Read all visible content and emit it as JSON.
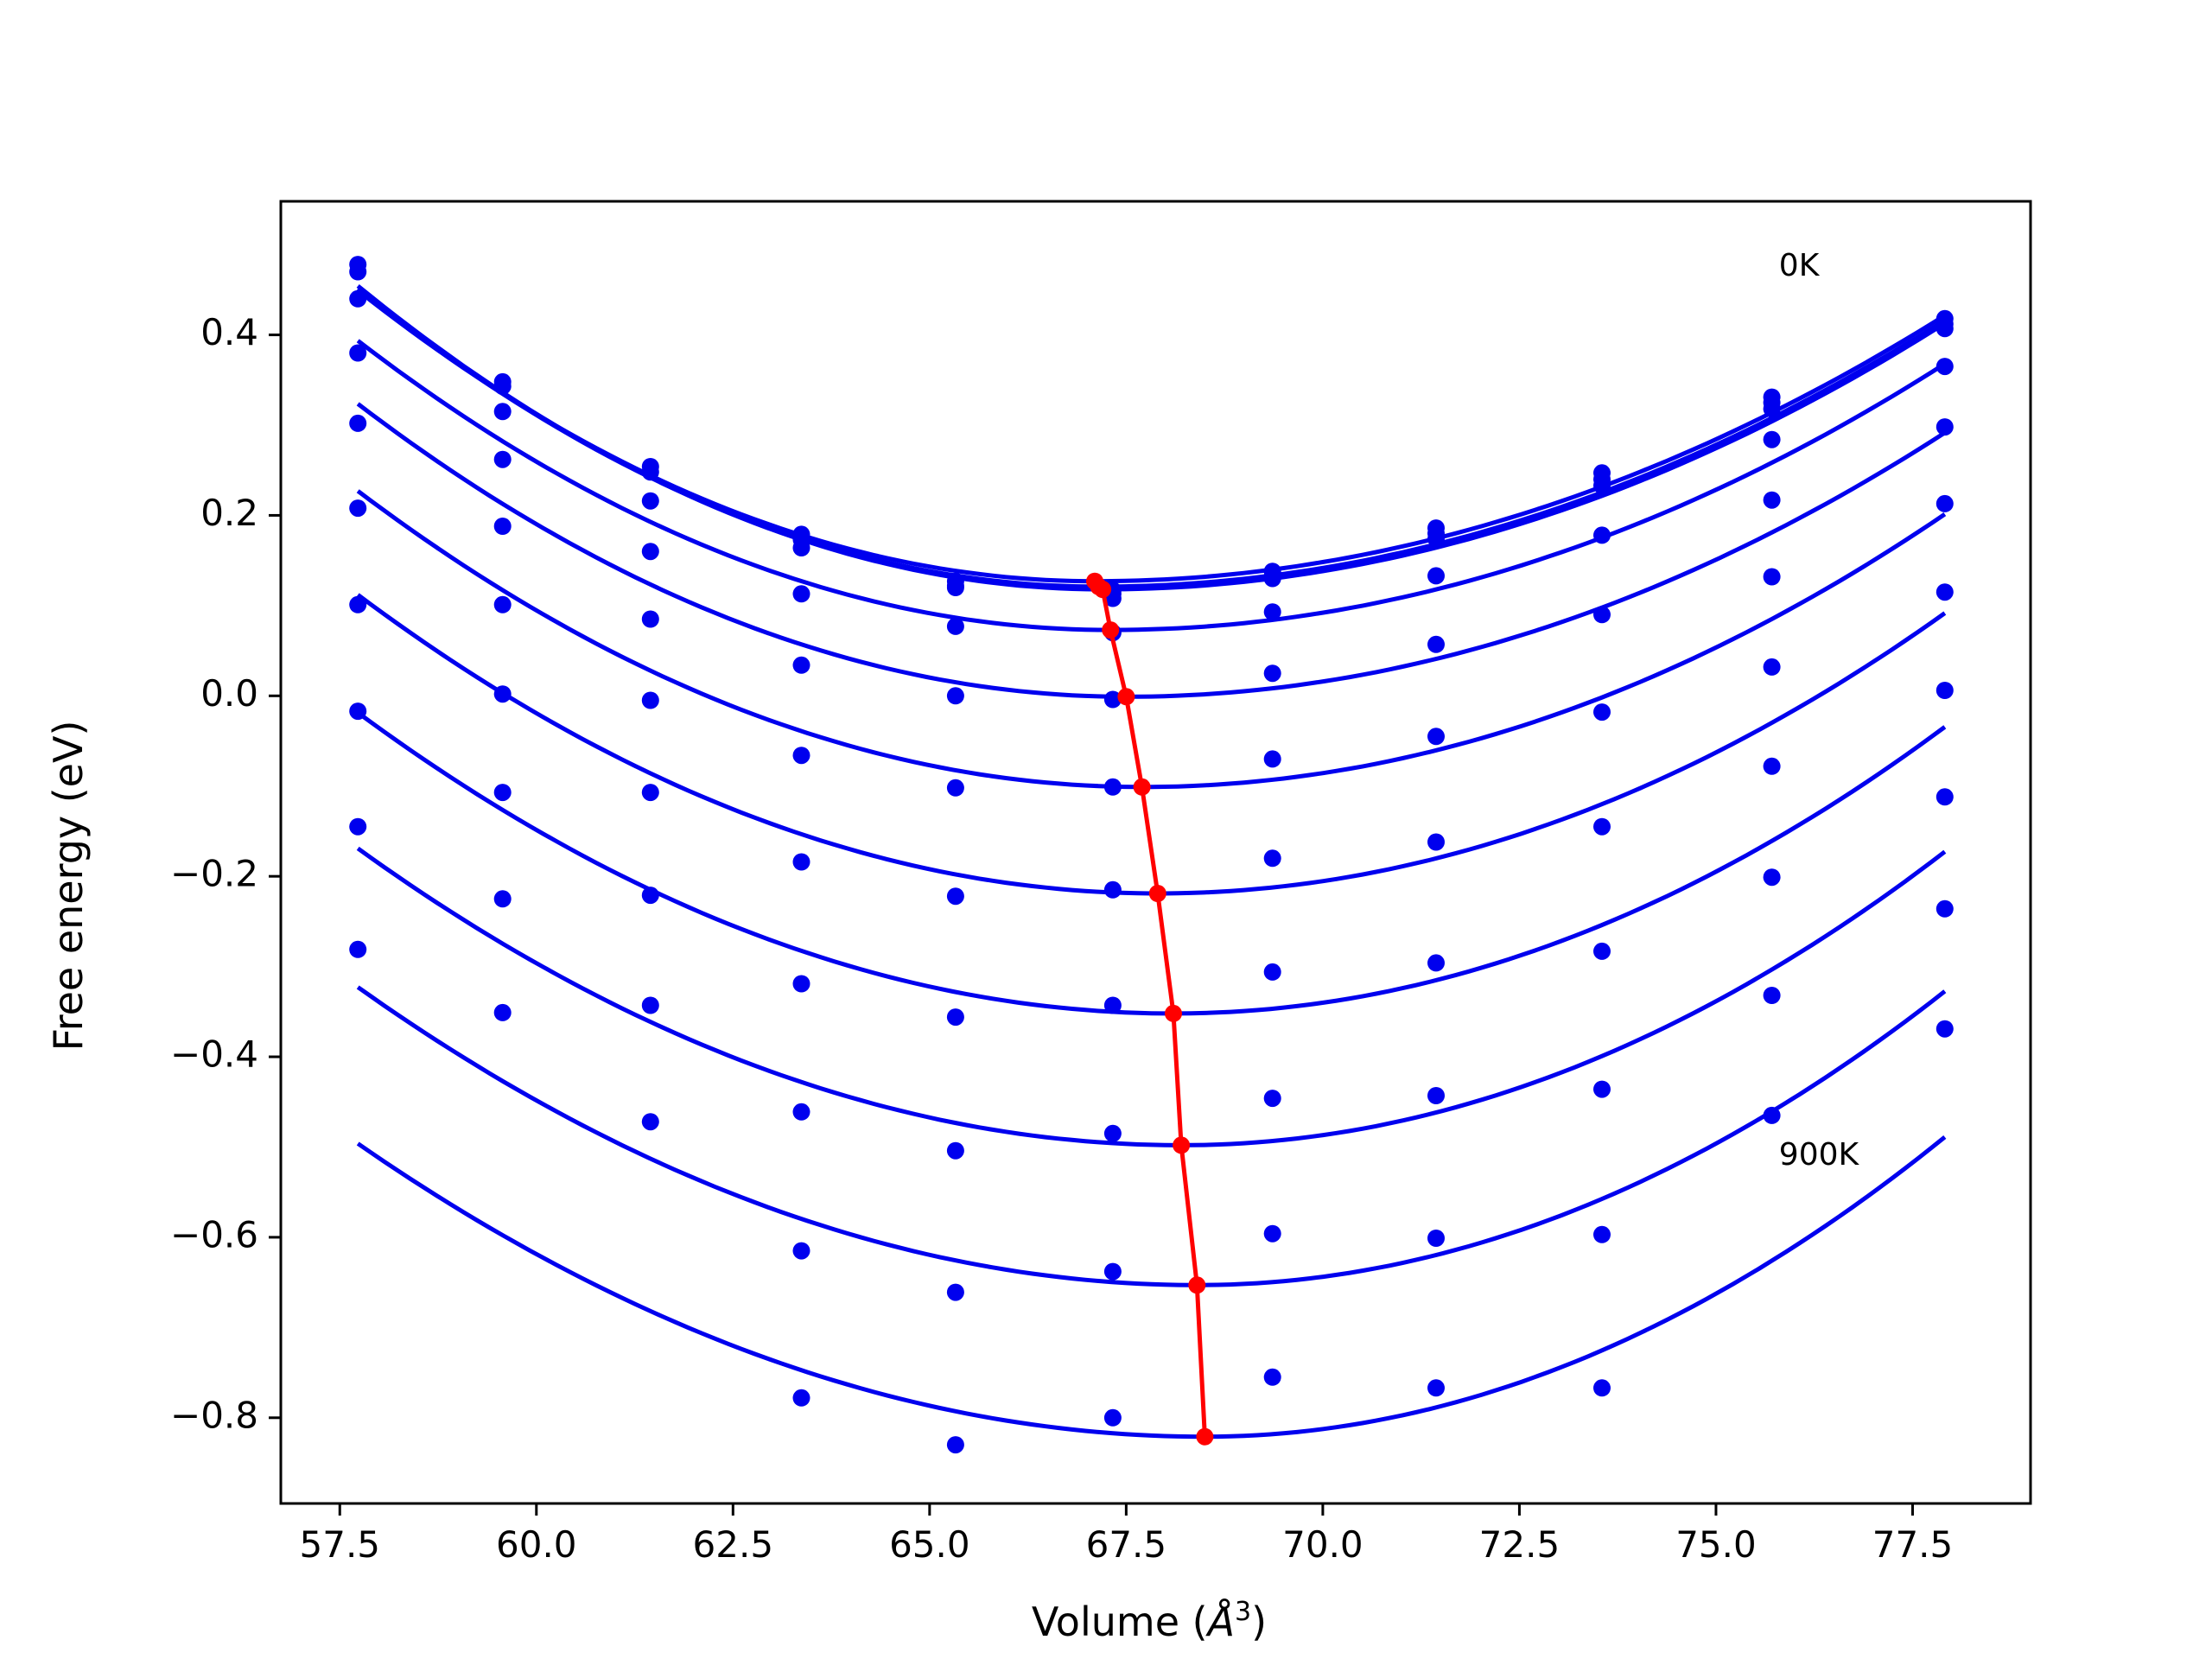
{
  "chart_data": {
    "type": "scatter",
    "title": "",
    "xlabel": "Volume (",
    "xlabel_symbol": "Å",
    "xlabel_exp": "3",
    "xlabel_close": ")",
    "ylabel": "Free energy (eV)",
    "xlim": [
      56.75,
      79.0
    ],
    "ylim": [
      -0.895,
      0.548
    ],
    "xticks": [
      57.5,
      60.0,
      62.5,
      65.0,
      67.5,
      70.0,
      72.5,
      75.0,
      77.5
    ],
    "xtick_labels": [
      "57.5",
      "60.0",
      "62.5",
      "65.0",
      "67.5",
      "70.0",
      "72.5",
      "75.0",
      "77.5"
    ],
    "yticks": [
      0.4,
      0.2,
      0.0,
      -0.2,
      -0.4,
      -0.6,
      -0.8
    ],
    "ytick_labels": [
      "0.4",
      "0.2",
      "0.0",
      "−0.2",
      "−0.4",
      "−0.6",
      "−0.8"
    ],
    "grid": false,
    "legend": "none",
    "colors": {
      "fit_curves": "#0000ee",
      "points": "#0000ee",
      "min_path": "#ff0000"
    },
    "annotations": [
      {
        "text": "0K",
        "x": 75.8,
        "y": 0.475
      },
      {
        "text": "900K",
        "x": 75.8,
        "y": -0.51
      }
    ],
    "volumes": [
      57.73,
      59.57,
      61.45,
      63.37,
      65.33,
      67.33,
      69.36,
      71.44,
      73.55,
      75.71,
      77.91
    ],
    "series": [
      {
        "values": [
          0.478,
          0.348,
          0.254,
          0.179,
          0.127,
          0.117,
          0.138,
          0.186,
          0.247,
          0.331,
          0.418
        ],
        "fit": {
          "vmin": 67.1,
          "fmin": 0.127,
          "a_left": 0.00367,
          "a_right": 0.00252
        }
      },
      {
        "values": [
          0.47,
          0.343,
          0.248,
          0.173,
          0.122,
          0.113,
          0.133,
          0.18,
          0.24,
          0.325,
          0.412
        ],
        "fit": {
          "vmin": 67.15,
          "fmin": 0.121,
          "a_left": 0.00372,
          "a_right": 0.00255
        }
      },
      {
        "values": [
          0.44,
          0.315,
          0.216,
          0.164,
          0.12,
          0.108,
          0.13,
          0.174,
          0.233,
          0.318,
          0.407
        ],
        "fit": {
          "vmin": 67.2,
          "fmin": 0.118,
          "a_left": 0.00375,
          "a_right": 0.00257
        }
      },
      {
        "values": [
          0.38,
          0.262,
          0.16,
          0.113,
          0.077,
          0.07,
          0.093,
          0.133,
          0.178,
          0.284,
          0.365
        ],
        "fit": {
          "vmin": 67.3,
          "fmin": 0.073,
          "a_left": 0.0035,
          "a_right": 0.00262
        }
      },
      {
        "values": [
          0.302,
          0.188,
          0.085,
          0.034,
          0.0,
          -0.004,
          0.025,
          0.057,
          0.09,
          0.217,
          0.298
        ],
        "fit": {
          "vmin": 67.5,
          "fmin": -0.001,
          "a_left": 0.0034,
          "a_right": 0.0027
        }
      },
      {
        "values": [
          0.208,
          0.101,
          -0.005,
          -0.066,
          -0.102,
          -0.101,
          -0.07,
          -0.045,
          -0.018,
          0.132,
          0.213
        ],
        "fit": {
          "vmin": 67.7,
          "fmin": -0.101,
          "a_left": 0.0033,
          "a_right": 0.0029
        }
      },
      {
        "values": [
          0.101,
          0.002,
          -0.107,
          -0.184,
          -0.222,
          -0.215,
          -0.18,
          -0.162,
          -0.145,
          0.032,
          0.115
        ],
        "fit": {
          "vmin": 67.9,
          "fmin": -0.219,
          "a_left": 0.0032,
          "a_right": 0.0031
        }
      },
      {
        "values": [
          -0.017,
          -0.107,
          -0.221,
          -0.319,
          -0.356,
          -0.343,
          -0.306,
          -0.296,
          -0.283,
          -0.078,
          0.006
        ],
        "fit": {
          "vmin": 68.1,
          "fmin": -0.352,
          "a_left": 0.0031,
          "a_right": 0.0033
        }
      },
      {
        "values": [
          -0.145,
          -0.225,
          -0.343,
          -0.461,
          -0.504,
          -0.485,
          -0.446,
          -0.443,
          -0.436,
          -0.201,
          -0.112
        ],
        "fit": {
          "vmin": 68.2,
          "fmin": -0.498,
          "a_left": 0.003,
          "a_right": 0.00345
        }
      },
      {
        "values": [
          -0.281,
          -0.351,
          -0.472,
          -0.615,
          -0.661,
          -0.638,
          -0.596,
          -0.601,
          -0.597,
          -0.332,
          -0.236
        ],
        "fit": {
          "vmin": 68.4,
          "fmin": -0.653,
          "a_left": 0.0029,
          "a_right": 0.0036
        }
      },
      {
        "values": [
          null,
          null,
          null,
          -0.778,
          -0.83,
          -0.8,
          -0.755,
          -0.767,
          -0.767,
          -0.465,
          -0.369
        ],
        "fit": {
          "vmin": 68.5,
          "fmin": -0.821,
          "a_left": 0.0028,
          "a_right": 0.00375
        }
      }
    ],
    "minima_path": {
      "x": [
        67.1,
        67.15,
        67.2,
        67.3,
        67.5,
        67.7,
        67.9,
        68.1,
        68.2,
        68.4,
        68.5
      ],
      "y": [
        0.127,
        0.121,
        0.118,
        0.073,
        -0.001,
        -0.101,
        -0.219,
        -0.352,
        -0.498,
        -0.653,
        -0.821
      ]
    }
  }
}
